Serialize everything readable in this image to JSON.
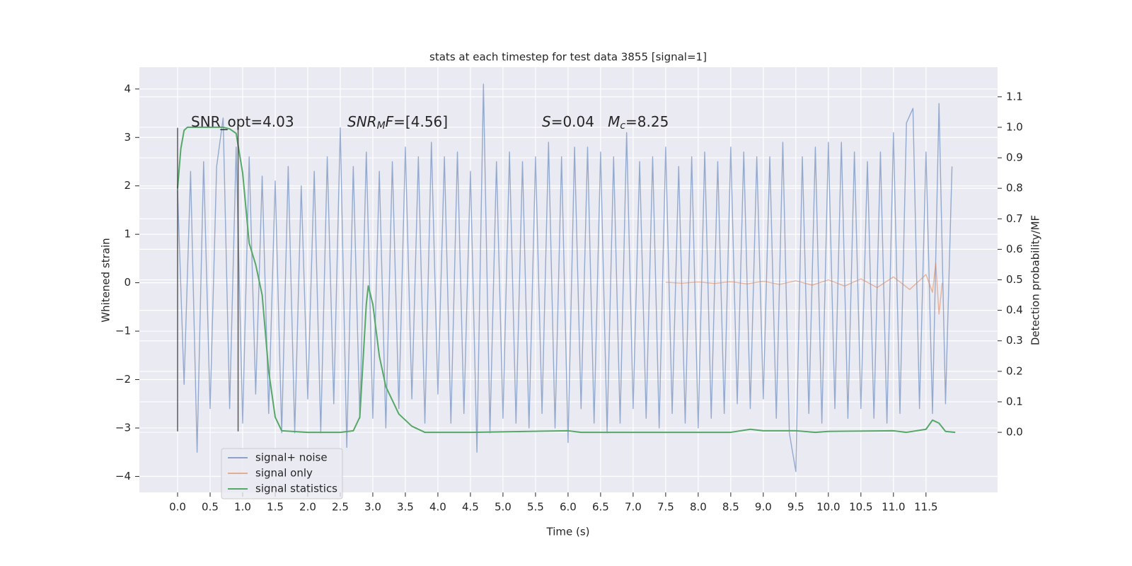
{
  "chart_data": {
    "type": "line",
    "title": "stats at each timestep for test data 3855 [signal=1]",
    "xlabel": "Time (s)",
    "ylabel": "Whitened strain",
    "y2label": "Detection probability/MF",
    "xlim": [
      -0.587,
      12.6
    ],
    "ylim": [
      -4.33,
      4.45
    ],
    "y2lim": [
      -0.197,
      1.197
    ],
    "xticks": [
      {
        "value": 0,
        "label": "0.0"
      },
      0.5,
      {
        "value": 1,
        "label": "1.0"
      },
      1.5,
      {
        "value": 2,
        "label": "2.0"
      },
      2.5,
      {
        "value": 3,
        "label": "3.0"
      },
      3.5,
      {
        "value": 4,
        "label": "4.0"
      },
      4.5,
      {
        "value": 5,
        "label": "5.0"
      },
      5.5,
      {
        "value": 6,
        "label": "6.0"
      },
      6.5,
      {
        "value": 7,
        "label": "7.0"
      },
      7.5,
      {
        "value": 8,
        "label": "8.0"
      },
      8.5,
      {
        "value": 9,
        "label": "9.0"
      },
      9.5,
      {
        "value": 10,
        "label": "10.0"
      },
      10.5,
      {
        "value": 11,
        "label": "11.0"
      },
      11.5
    ],
    "yticks": [
      {
        "value": -4,
        "label": "−4"
      },
      {
        "value": -3,
        "label": "−3"
      },
      {
        "value": -2,
        "label": "−2"
      },
      {
        "value": -1,
        "label": "−1"
      },
      0,
      1,
      2,
      3,
      4
    ],
    "y2ticks": [
      {
        "value": 0,
        "label": "0.0"
      },
      0.1,
      0.2,
      0.3,
      0.4,
      0.5,
      0.6,
      0.7,
      0.8,
      0.9,
      {
        "value": 1,
        "label": "1.0"
      },
      1.1
    ],
    "grid": true,
    "legend": "lower left",
    "series": [
      {
        "name": "signal+ noise",
        "color": "#4c72b0",
        "x": [
          0,
          0.1,
          0.2,
          0.3,
          0.4,
          0.5,
          0.6,
          0.7,
          0.8,
          0.9,
          1,
          1.1,
          1.2,
          1.3,
          1.4,
          1.5,
          1.6,
          1.7,
          1.8,
          1.9,
          2,
          2.1,
          2.2,
          2.3,
          2.4,
          2.5,
          2.6,
          2.7,
          2.8,
          2.9,
          3,
          3.1,
          3.2,
          3.3,
          3.4,
          3.5,
          3.6,
          3.7,
          3.8,
          3.9,
          4,
          4.1,
          4.2,
          4.3,
          4.4,
          4.5,
          4.6,
          4.7,
          4.8,
          4.9,
          5,
          5.1,
          5.2,
          5.3,
          5.4,
          5.5,
          5.6,
          5.7,
          5.8,
          5.9,
          6,
          6.1,
          6.2,
          6.3,
          6.4,
          6.5,
          6.6,
          6.7,
          6.8,
          6.9,
          7,
          7.1,
          7.2,
          7.3,
          7.4,
          7.5,
          7.6,
          7.7,
          7.8,
          7.9,
          8,
          8.1,
          8.2,
          8.3,
          8.4,
          8.5,
          8.6,
          8.7,
          8.8,
          8.9,
          9,
          9.1,
          9.2,
          9.3,
          9.4,
          9.5,
          9.6,
          9.7,
          9.8,
          9.9,
          10,
          10.1,
          10.2,
          10.3,
          10.4,
          10.5,
          10.6,
          10.7,
          10.8,
          10.9,
          11,
          11.1,
          11.2,
          11.3,
          11.4,
          11.5,
          11.6,
          11.7,
          11.8,
          11.9
        ],
        "values": [
          1.9,
          -2.1,
          2.3,
          -3.5,
          2.5,
          -2.6,
          2.4,
          3.4,
          -2.6,
          2.8,
          -2.9,
          2.6,
          -2.3,
          2.2,
          -2.7,
          2.1,
          -3.1,
          2.4,
          -3.1,
          2.0,
          -2.4,
          2.3,
          -3.1,
          2.6,
          -2.5,
          3.2,
          -3.4,
          2.4,
          -2.8,
          2.7,
          -2.8,
          2.3,
          -3.0,
          2.5,
          -2.6,
          2.8,
          -2.4,
          2.6,
          -2.9,
          2.9,
          -2.3,
          2.6,
          -2.9,
          2.7,
          -2.7,
          2.3,
          -3.5,
          4.1,
          -3.1,
          2.5,
          -2.8,
          2.7,
          -2.9,
          2.5,
          -3.0,
          2.6,
          -2.7,
          2.9,
          -3.0,
          2.6,
          -3.3,
          2.8,
          -2.6,
          2.8,
          -2.9,
          2.7,
          -3.1,
          2.6,
          -2.9,
          3.1,
          -2.6,
          2.5,
          -2.8,
          2.6,
          -3.0,
          2.8,
          -2.7,
          2.4,
          -2.9,
          2.6,
          -3.0,
          2.7,
          -2.8,
          2.5,
          -2.7,
          2.8,
          -2.5,
          2.7,
          -2.6,
          2.6,
          -2.4,
          2.6,
          -2.8,
          2.9,
          -3.1,
          -3.9,
          2.6,
          -2.7,
          2.8,
          -2.9,
          2.9,
          -2.6,
          2.9,
          -2.8,
          2.7,
          -2.6,
          2.5,
          -2.8,
          2.7,
          -2.9,
          3.1,
          -2.7,
          3.3,
          3.6,
          -2.6,
          2.7,
          -2.7,
          3.7,
          -2.5,
          2.4
        ]
      },
      {
        "name": "signal only",
        "color": "#dd8452",
        "x": [
          7.5,
          7.75,
          8,
          8.25,
          8.5,
          8.75,
          9,
          9.25,
          9.5,
          9.75,
          10,
          10.25,
          10.5,
          10.75,
          11,
          11.25,
          11.5,
          11.6,
          11.65,
          11.7,
          11.75
        ],
        "values": [
          0.01,
          -0.01,
          0.015,
          -0.015,
          0.02,
          -0.025,
          0.03,
          -0.035,
          0.04,
          -0.05,
          0.06,
          -0.07,
          0.08,
          -0.1,
          0.12,
          -0.14,
          0.17,
          -0.2,
          0.4,
          -0.65,
          0
        ]
      },
      {
        "name": "signal statistics",
        "color": "#55a868",
        "axis": "y2",
        "x": [
          0,
          0.05,
          0.1,
          0.15,
          0.3,
          0.5,
          0.7,
          0.8,
          0.9,
          1,
          1.1,
          1.2,
          1.3,
          1.4,
          1.5,
          1.6,
          2,
          2.5,
          2.7,
          2.8,
          2.9,
          2.93,
          3,
          3.1,
          3.2,
          3.4,
          3.6,
          3.8,
          4.5,
          6,
          6.2,
          8.5,
          8.8,
          9,
          9.5,
          9.8,
          10,
          11,
          11.2,
          11.5,
          11.6,
          11.7,
          11.8,
          11.95
        ],
        "values": [
          0.8,
          0.93,
          0.99,
          1,
          1,
          1,
          1,
          0.995,
          0.98,
          0.85,
          0.62,
          0.55,
          0.45,
          0.2,
          0.05,
          0.005,
          0,
          0,
          0.005,
          0.05,
          0.42,
          0.48,
          0.42,
          0.25,
          0.15,
          0.06,
          0.02,
          0,
          0,
          0.005,
          0,
          0,
          0.01,
          0.005,
          0.005,
          0,
          0.003,
          0.005,
          0,
          0.01,
          0.04,
          0.03,
          0.003,
          0
        ]
      }
    ],
    "vlines": {
      "x": [
        0,
        0.93
      ],
      "ymin": -3.07,
      "ymax": 3.2,
      "color": "#333333"
    },
    "annotations": [
      {
        "parts": [
          {
            "text": "SNR_opt=4.03"
          }
        ]
      },
      {
        "parts": [
          {
            "text": "SNR",
            "italic": true
          },
          {
            "text": "M",
            "italic": true,
            "sub": true
          },
          {
            "text": "F",
            "italic": true
          },
          {
            "text": "=[4.56]"
          }
        ]
      },
      {
        "parts": [
          {
            "text": "S",
            "italic": true
          },
          {
            "text": "=0.04   "
          },
          {
            "text": "M",
            "italic": true
          },
          {
            "text": "c",
            "italic": true,
            "sub": true
          },
          {
            "text": "=8.25"
          }
        ]
      }
    ]
  }
}
